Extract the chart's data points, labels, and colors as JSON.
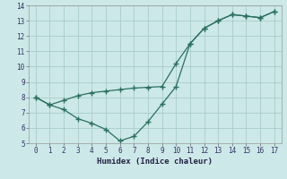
{
  "xlabel": "Humidex (Indice chaleur)",
  "ylabel": "",
  "background_color": "#cce8e8",
  "grid_color": "#aacccc",
  "line_color": "#2a7060",
  "xlim": [
    -0.5,
    17.5
  ],
  "ylim": [
    5,
    14
  ],
  "xticks": [
    0,
    1,
    2,
    3,
    4,
    5,
    6,
    7,
    8,
    9,
    10,
    11,
    12,
    13,
    14,
    15,
    16,
    17
  ],
  "yticks": [
    5,
    6,
    7,
    8,
    9,
    10,
    11,
    12,
    13,
    14
  ],
  "line1_x": [
    0,
    1,
    2,
    3,
    4,
    5,
    6,
    7,
    8,
    9,
    10,
    11,
    12,
    13,
    14,
    15,
    16,
    17
  ],
  "line1_y": [
    8.0,
    7.5,
    7.8,
    8.1,
    8.3,
    8.4,
    8.5,
    8.6,
    8.65,
    8.7,
    10.2,
    11.5,
    12.5,
    13.0,
    13.4,
    13.3,
    13.2,
    13.6
  ],
  "line2_x": [
    0,
    1,
    2,
    3,
    4,
    5,
    6,
    7,
    8,
    9,
    10,
    11,
    12,
    13,
    14,
    15,
    16,
    17
  ],
  "line2_y": [
    8.0,
    7.5,
    7.2,
    6.6,
    6.3,
    5.9,
    5.15,
    5.45,
    6.4,
    7.55,
    8.7,
    11.5,
    12.5,
    13.0,
    13.4,
    13.3,
    13.2,
    13.6
  ]
}
